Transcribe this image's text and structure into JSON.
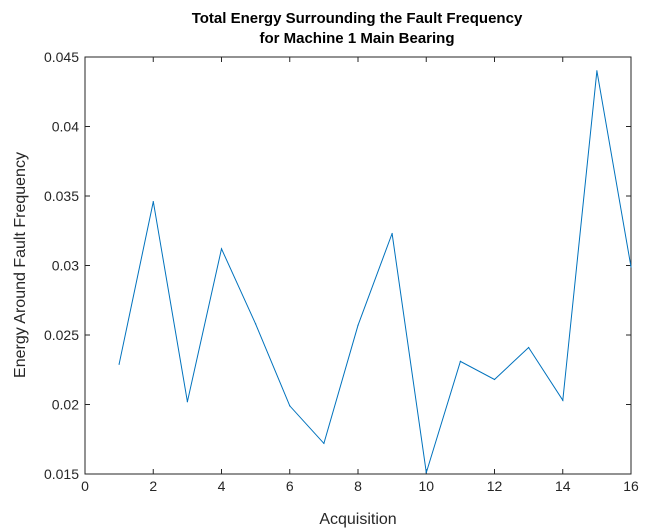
{
  "chart_data": {
    "type": "line",
    "title_lines": [
      "Total Energy Surrounding the Fault Frequency",
      "for Machine 1 Main Bearing"
    ],
    "xlabel": "Acquisition",
    "ylabel": "Energy Around Fault Frequency",
    "xlim": [
      0,
      16
    ],
    "ylim": [
      0.015,
      0.045
    ],
    "xticks": [
      0,
      2,
      4,
      6,
      8,
      10,
      12,
      14,
      16
    ],
    "xtick_labels": [
      "0",
      "2",
      "4",
      "6",
      "8",
      "10",
      "12",
      "14",
      "16"
    ],
    "yticks": [
      0.015,
      0.02,
      0.025,
      0.03,
      0.035,
      0.04,
      0.045
    ],
    "ytick_labels": [
      "0.015",
      "0.02",
      "0.025",
      "0.03",
      "0.035",
      "0.04",
      "0.045"
    ],
    "grid": false,
    "series": [
      {
        "color": "#0072BD",
        "x": [
          1,
          2,
          3,
          4,
          5,
          6,
          7,
          8,
          9,
          10,
          11,
          12,
          13,
          14,
          15,
          16
        ],
        "y": [
          0.0229,
          0.0346,
          0.0202,
          0.0312,
          0.0258,
          0.0199,
          0.0172,
          0.0257,
          0.0323,
          0.0151,
          0.0231,
          0.0218,
          0.0241,
          0.0203,
          0.044,
          0.0299
        ]
      }
    ]
  }
}
